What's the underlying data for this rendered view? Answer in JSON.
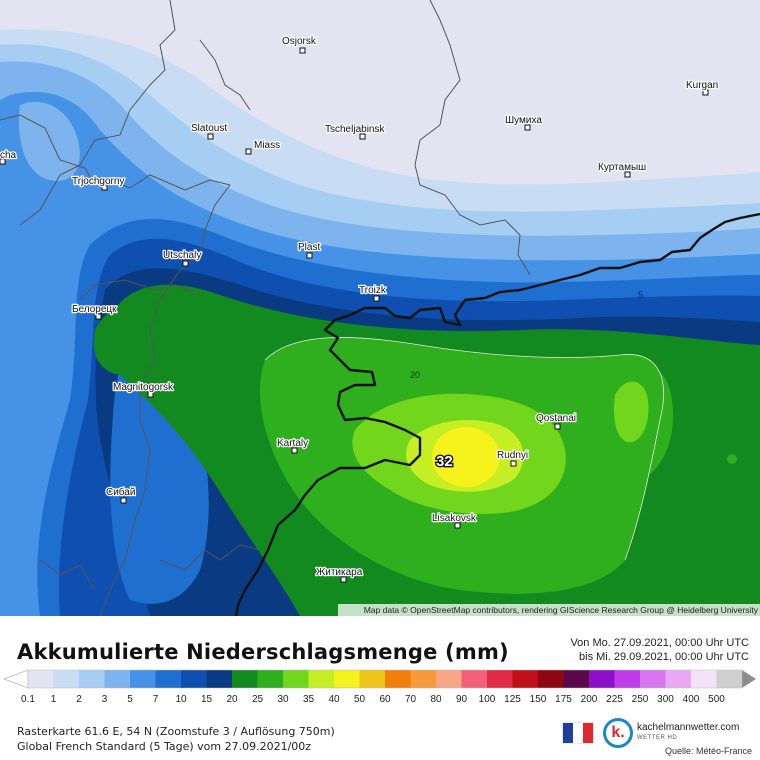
{
  "map": {
    "attribution": "Map data © OpenStreetMap contributors, rendering GIScience Research Group @ Heidelberg University",
    "max_label": "32",
    "contour_labels": [
      "20",
      "5"
    ],
    "places": [
      {
        "name": "Osjorsk"
      },
      {
        "name": "Kurgan"
      },
      {
        "name": "Slatoust"
      },
      {
        "name": "Miass"
      },
      {
        "name": "Tscheljabinsk"
      },
      {
        "name": "Шумиха"
      },
      {
        "name": "cha"
      },
      {
        "name": "Trjochgorny"
      },
      {
        "name": "Куртамыш"
      },
      {
        "name": "Plast"
      },
      {
        "name": "Utschaly"
      },
      {
        "name": "Troizk"
      },
      {
        "name": "Белорецк"
      },
      {
        "name": "Magnitogorsk"
      },
      {
        "name": "Qostanai"
      },
      {
        "name": "Kartaly"
      },
      {
        "name": "Rudnyi"
      },
      {
        "name": "Сибай"
      },
      {
        "name": "Lisakovsk"
      },
      {
        "name": "Житикара"
      }
    ]
  },
  "title": "Akkumulierte Niederschlagsmenge (mm)",
  "period": {
    "line1": "Von Mo. 27.09.2021, 00:00 Uhr UTC",
    "line2": "bis Mi. 29.09.2021, 00:00 Uhr UTC"
  },
  "legend": {
    "steps": [
      {
        "label": "0.1",
        "color": "#e3e3f2"
      },
      {
        "label": "1",
        "color": "#c8dcf4"
      },
      {
        "label": "2",
        "color": "#a6cdf2"
      },
      {
        "label": "3",
        "color": "#7db4ee"
      },
      {
        "label": "5",
        "color": "#4592e6"
      },
      {
        "label": "7",
        "color": "#1f6fd0"
      },
      {
        "label": "10",
        "color": "#0f4fb0"
      },
      {
        "label": "15",
        "color": "#0a3a82"
      },
      {
        "label": "20",
        "color": "#138a20"
      },
      {
        "label": "25",
        "color": "#2fae1e"
      },
      {
        "label": "30",
        "color": "#72d61c"
      },
      {
        "label": "35",
        "color": "#c6ee24"
      },
      {
        "label": "40",
        "color": "#f5f21c"
      },
      {
        "label": "50",
        "color": "#ecc61a"
      },
      {
        "label": "60",
        "color": "#f07f0c"
      },
      {
        "label": "70",
        "color": "#f79a3c"
      },
      {
        "label": "80",
        "color": "#f6a886"
      },
      {
        "label": "90",
        "color": "#f2617a"
      },
      {
        "label": "100",
        "color": "#e22a4a"
      },
      {
        "label": "125",
        "color": "#bf0f18"
      },
      {
        "label": "150",
        "color": "#8e0712"
      },
      {
        "label": "175",
        "color": "#5a0a4a"
      },
      {
        "label": "200",
        "color": "#8c10c6"
      },
      {
        "label": "225",
        "color": "#c03cea"
      },
      {
        "label": "250",
        "color": "#d876f0"
      },
      {
        "label": "300",
        "color": "#e8a8f4"
      },
      {
        "label": "400",
        "color": "#f4e2f8"
      },
      {
        "label": "500",
        "color": "#cfcfcf"
      }
    ],
    "min_arrow_color": "#ffffff",
    "max_arrow_color": "#8c8c8c"
  },
  "info": {
    "line1": "Rasterkarte 61.6 E, 54 N (Zoomstufe 3 / Auflösung 750m)",
    "line2": "Global French Standard (5 Tage) vom 27.09.2021/00z"
  },
  "flag_colors": [
    "#1f3f9e",
    "#ffffff",
    "#e0282e"
  ],
  "brand": {
    "logo_letter": "k.",
    "name": "kachelmannwetter.com",
    "subtitle": "WETTER HD"
  },
  "source": "Quelle: Météo-France"
}
